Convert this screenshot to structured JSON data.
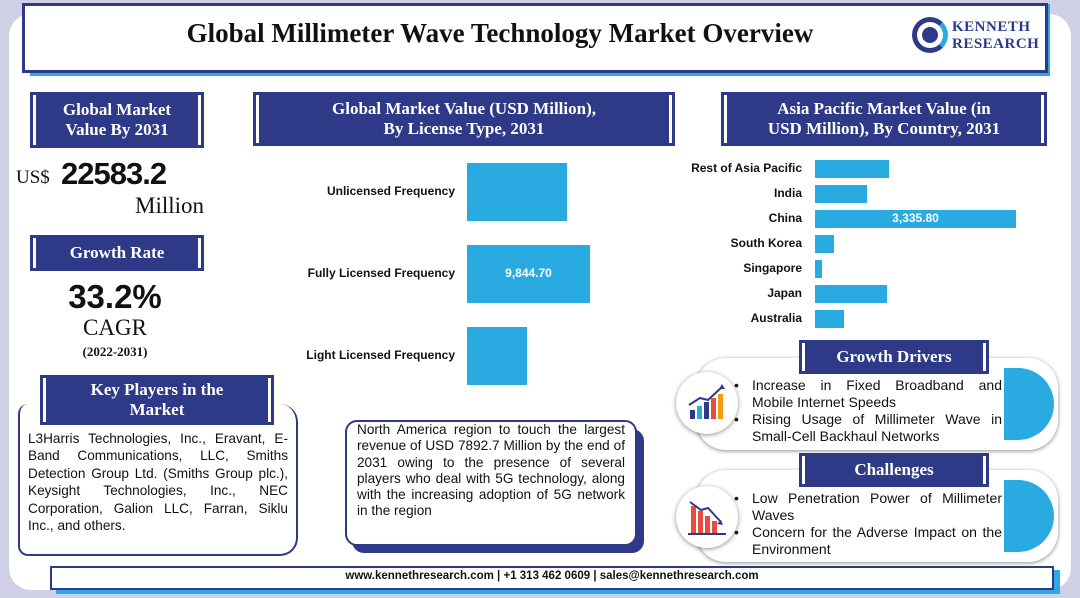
{
  "title": "Global Millimeter Wave Technology Market Overview",
  "logo": {
    "line1": "KENNETH",
    "line2": "RESEARCH"
  },
  "market_value": {
    "banner_line1": "Global Market",
    "banner_line2": "Value By 2031",
    "prefix": "US$",
    "value": "22583.2",
    "unit": "Million"
  },
  "growth": {
    "banner": "Growth Rate",
    "value": "33.2%",
    "label": "CAGR",
    "period": "(2022-2031)"
  },
  "players": {
    "banner_line1": "Key Players in the",
    "banner_line2": "Market",
    "text": "L3Harris Technologies, Inc., Eravant, E-Band Communications, LLC, Smiths Detection Group Ltd. (Smiths Group plc.), Keysight Technologies, Inc., NEC Corporation, Galion LLC, Farran, Siklu Inc., and others."
  },
  "license_chart": {
    "banner_line1": "Global Market Value (USD Million),",
    "banner_line2": "By License Type, 2031"
  },
  "apac_chart": {
    "banner_line1": "Asia Pacific Market Value (in",
    "banner_line2": "USD Million), By Country, 2031"
  },
  "north_america": {
    "text": "North America region to touch the largest revenue of USD 7892.7 Million by the end of 2031 owing to the presence of several players who deal with 5G technology, along with the increasing adoption of 5G network in the region"
  },
  "drivers": {
    "banner": "Growth Drivers",
    "items": [
      "Increase in Fixed Broadband and Mobile Internet Speeds",
      "Rising Usage of Millimeter Wave in Small-Cell Backhaul Networks"
    ]
  },
  "challenges": {
    "banner": "Challenges",
    "items": [
      "Low Penetration Power of Millimeter Waves",
      "Concern for the Adverse Impact on the Environment"
    ]
  },
  "footer": "www.kennethresearch.com | +1 313 462 0609 | sales@kennethresearch.com",
  "colors": {
    "navy": "#2e3a87",
    "accent": "#29abe2"
  },
  "chart_data": [
    {
      "type": "bar",
      "orientation": "horizontal",
      "title": "Global Market Value (USD Million), By License Type, 2031",
      "categories": [
        "Unlicensed Frequency",
        "Fully Licensed Frequency",
        "Light Licensed Frequency"
      ],
      "values": [
        7960,
        9844.7,
        4780
      ],
      "labels": [
        "",
        "9,844.70",
        ""
      ],
      "xlim": [
        0,
        11600
      ]
    },
    {
      "type": "bar",
      "orientation": "horizontal",
      "title": "Asia Pacific Market Value (in USD Million), By Country, 2031",
      "categories": [
        "Rest of Asia Pacific",
        "India",
        "China",
        "South Korea",
        "Singapore",
        "Japan",
        "Australia"
      ],
      "values": [
        1230,
        860,
        3335.8,
        320,
        110,
        1190,
        480
      ],
      "labels": [
        "",
        "",
        "3,335.80",
        "",
        "",
        "",
        ""
      ],
      "xlim": [
        0,
        3400
      ]
    }
  ]
}
